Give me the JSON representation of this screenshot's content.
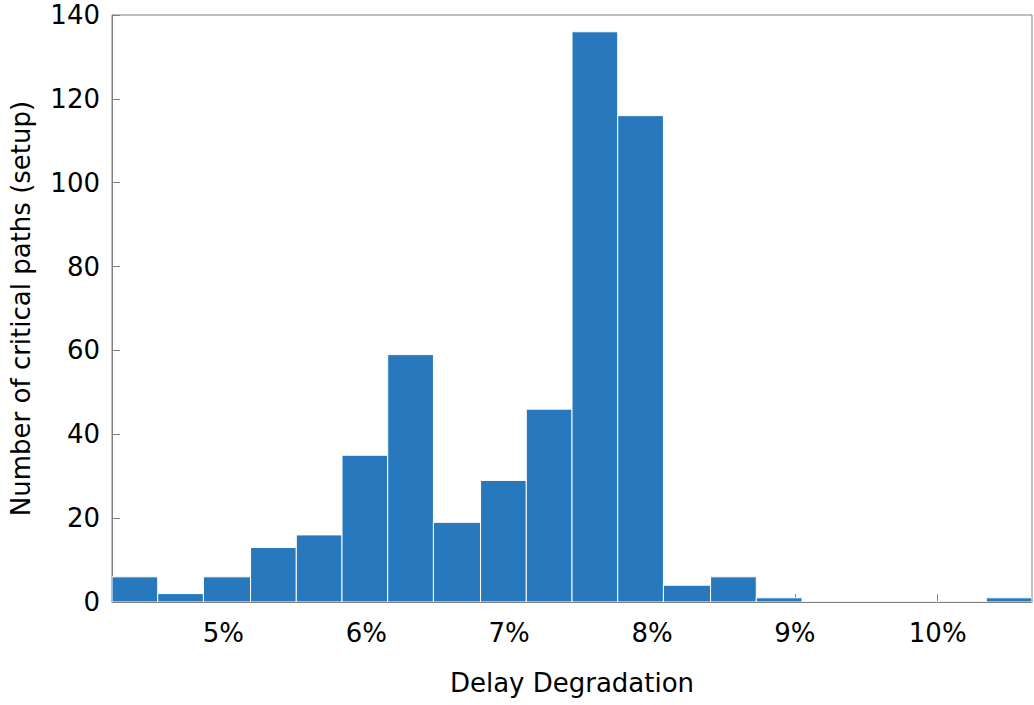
{
  "chart_data": {
    "type": "histogram",
    "xlabel": "Delay Degradation",
    "ylabel": "Number of critical paths (setup)",
    "bins": [
      4.22,
      4.54,
      4.86,
      5.19,
      5.51,
      5.83,
      6.15,
      6.47,
      6.8,
      7.12,
      7.44,
      7.76,
      8.08,
      8.41,
      8.73,
      9.05,
      9.37,
      9.69,
      10.02,
      10.34,
      10.66
    ],
    "counts": [
      6,
      2,
      6,
      13,
      16,
      35,
      59,
      19,
      29,
      46,
      136,
      116,
      4,
      6,
      1,
      0,
      0,
      0,
      0,
      1
    ],
    "color": "#2878bd",
    "xlim": [
      4.22,
      10.66
    ],
    "xticks": [
      {
        "value": 5,
        "label": "5%"
      },
      {
        "value": 6,
        "label": "6%"
      },
      {
        "value": 7,
        "label": "7%"
      },
      {
        "value": 8,
        "label": "8%"
      },
      {
        "value": 9,
        "label": "9%"
      },
      {
        "value": 10,
        "label": "10%"
      }
    ],
    "ylim": [
      0,
      140
    ],
    "yticks": [
      0,
      20,
      40,
      60,
      80,
      100,
      120,
      140
    ],
    "grid": false
  }
}
